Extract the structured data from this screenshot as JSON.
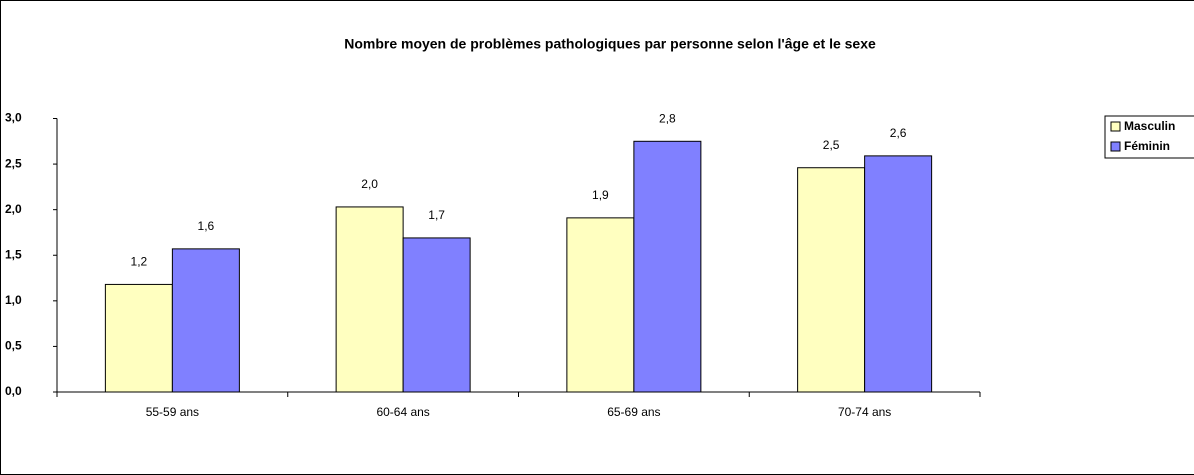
{
  "chart_data": {
    "type": "bar",
    "title": "Nombre moyen de problèmes pathologiques par personne selon l'âge et le sexe",
    "categories": [
      "55-59 ans",
      "60-64 ans",
      "65-69 ans",
      "70-74 ans"
    ],
    "series": [
      {
        "name": "Masculin",
        "color": "#ffffc0",
        "values": [
          1.18,
          2.03,
          1.91,
          2.46
        ],
        "value_labels": [
          "1,2",
          "2,0",
          "1,9",
          "2,5"
        ]
      },
      {
        "name": "Féminin",
        "color": "#8080ff",
        "values": [
          1.57,
          1.69,
          2.75,
          2.59
        ],
        "value_labels": [
          "1,6",
          "1,7",
          "2,8",
          "2,6"
        ]
      }
    ],
    "ylim": [
      0,
      3
    ],
    "yticks": [
      {
        "value": 0,
        "label": "0,0"
      },
      {
        "value": 0.5,
        "label": "0,5"
      },
      {
        "value": 1,
        "label": "1,0"
      },
      {
        "value": 1.5,
        "label": "1,5"
      },
      {
        "value": 2,
        "label": "2,0"
      },
      {
        "value": 2.5,
        "label": "2,5"
      },
      {
        "value": 3,
        "label": "3,0"
      }
    ],
    "grid": false,
    "legend": "right"
  }
}
